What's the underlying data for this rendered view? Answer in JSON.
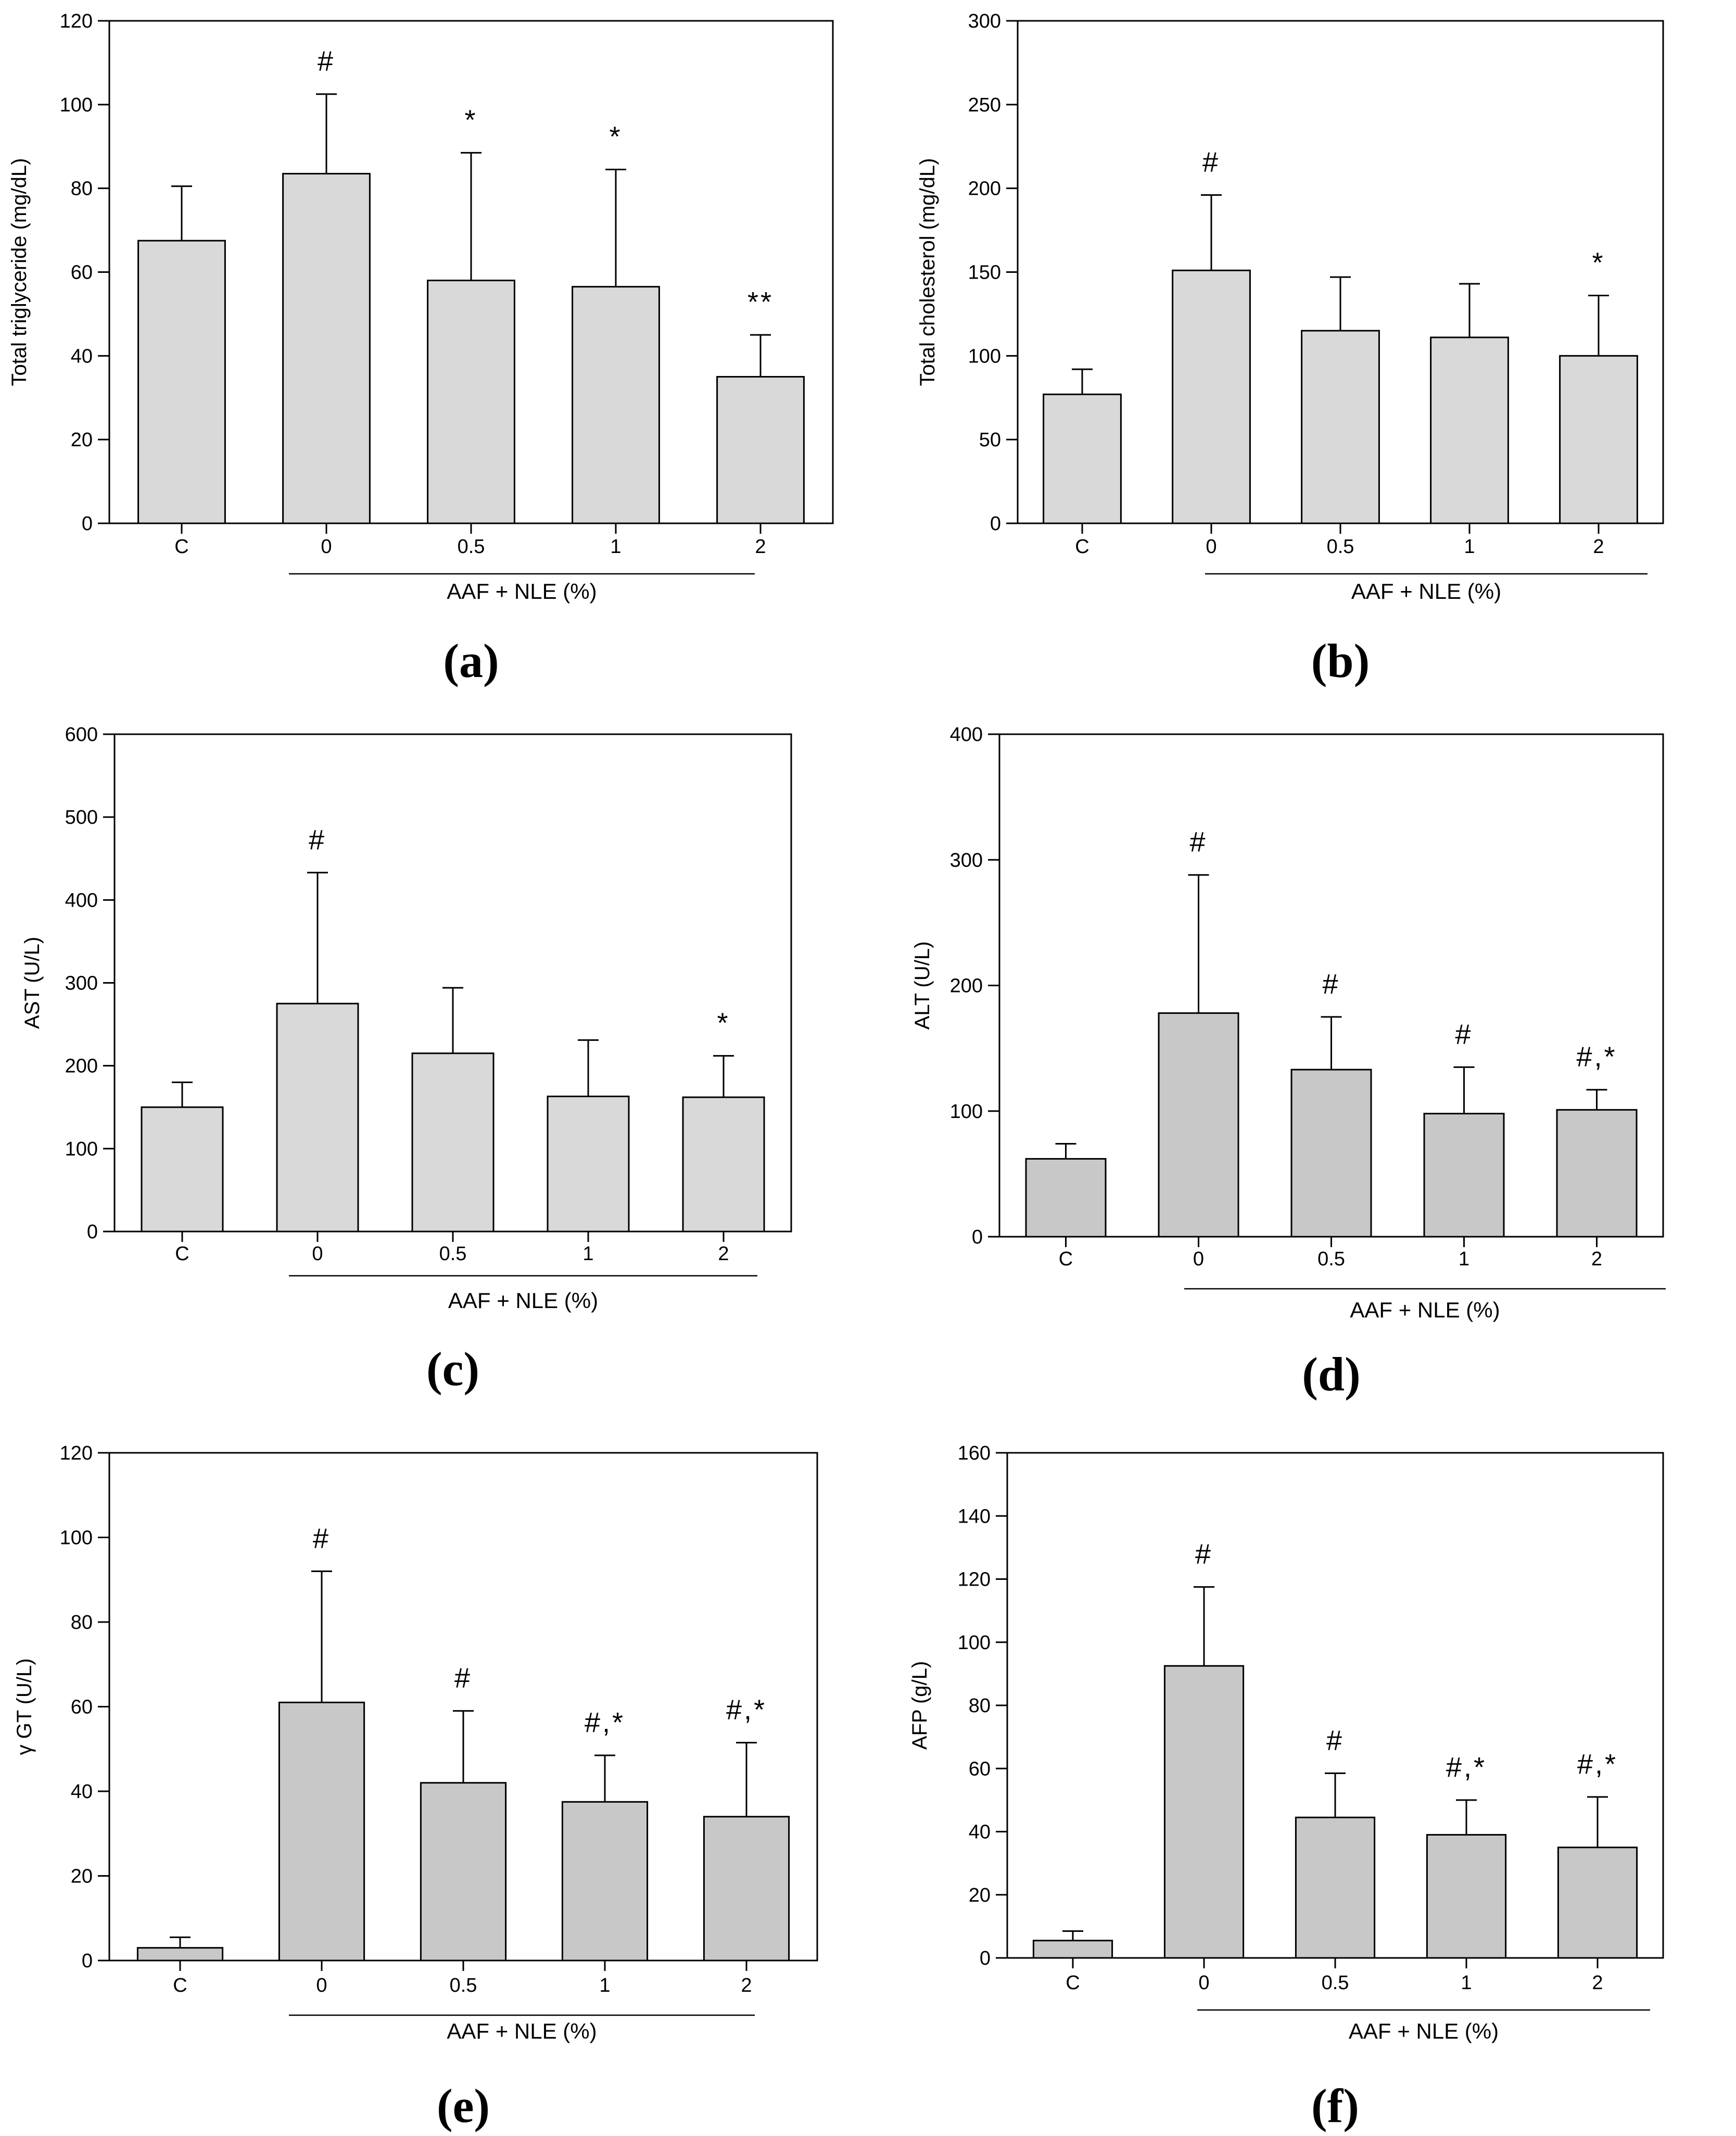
{
  "figure": {
    "group_label": "AAF + NLE (%)"
  },
  "chart_data": [
    {
      "type": "bar",
      "panel_label": "(a)",
      "ylabel": "Total triglyceride (mg/dL)",
      "xlabel": "AAF + NLE (%)",
      "categories": [
        "C",
        "0",
        "0.5",
        "1",
        "2"
      ],
      "values": [
        67.5,
        83.5,
        58.0,
        56.5,
        35.0
      ],
      "errors": [
        13.0,
        19.0,
        30.5,
        28.0,
        10.0
      ],
      "significance": [
        "",
        "#",
        "*",
        "*",
        "**"
      ],
      "ylim": [
        0,
        120
      ],
      "yticks": [
        0,
        20,
        40,
        60,
        80,
        100,
        120
      ],
      "bar_color": "#d9d9d9"
    },
    {
      "type": "bar",
      "panel_label": "(b)",
      "ylabel": "Total cholesterol (mg/dL)",
      "xlabel": "AAF + NLE (%)",
      "categories": [
        "C",
        "0",
        "0.5",
        "1",
        "2"
      ],
      "values": [
        77,
        151,
        115,
        111,
        100
      ],
      "errors": [
        15,
        45,
        32,
        32,
        36
      ],
      "significance": [
        "",
        "#",
        "",
        "",
        "*"
      ],
      "ylim": [
        0,
        300
      ],
      "yticks": [
        0,
        50,
        100,
        150,
        200,
        250,
        300
      ],
      "bar_color": "#d9d9d9"
    },
    {
      "type": "bar",
      "panel_label": "(c)",
      "ylabel": "AST (U/L)",
      "xlabel": "AAF + NLE (%)",
      "categories": [
        "C",
        "0",
        "0.5",
        "1",
        "2"
      ],
      "values": [
        150,
        275,
        215,
        163,
        162
      ],
      "errors": [
        30,
        158,
        79,
        68,
        50
      ],
      "significance": [
        "",
        "#",
        "",
        "",
        "*"
      ],
      "ylim": [
        0,
        600
      ],
      "yticks": [
        0,
        100,
        200,
        300,
        400,
        500,
        600
      ],
      "bar_color": "#d9d9d9"
    },
    {
      "type": "bar",
      "panel_label": "(d)",
      "ylabel": "ALT (U/L)",
      "xlabel": "AAF + NLE (%)",
      "categories": [
        "C",
        "0",
        "0.5",
        "1",
        "2"
      ],
      "values": [
        62,
        178,
        133,
        98,
        101
      ],
      "errors": [
        12,
        110,
        42,
        37,
        16
      ],
      "significance": [
        "",
        "#",
        "#",
        "#",
        "#,*"
      ],
      "ylim": [
        0,
        400
      ],
      "yticks": [
        0,
        100,
        200,
        300,
        400
      ],
      "bar_color": "#c8c8c8"
    },
    {
      "type": "bar",
      "panel_label": "(e)",
      "ylabel": "γ GT (U/L)",
      "xlabel": "AAF + NLE (%)",
      "categories": [
        "C",
        "0",
        "0.5",
        "1",
        "2"
      ],
      "values": [
        3,
        61,
        42,
        37.5,
        34
      ],
      "errors": [
        2.5,
        31,
        17,
        11,
        17.5
      ],
      "significance": [
        "",
        "#",
        "#",
        "#,*",
        "#,*"
      ],
      "ylim": [
        0,
        120
      ],
      "yticks": [
        0,
        20,
        40,
        60,
        80,
        100,
        120
      ],
      "bar_color": "#c8c8c8"
    },
    {
      "type": "bar",
      "panel_label": "(f)",
      "ylabel": "AFP (g/L)",
      "xlabel": "AAF + NLE (%)",
      "categories": [
        "C",
        "0",
        "0.5",
        "1",
        "2"
      ],
      "values": [
        5.5,
        92.5,
        44.5,
        39,
        35
      ],
      "errors": [
        3,
        25,
        14,
        11,
        16
      ],
      "significance": [
        "",
        "#",
        "#",
        "#,*",
        "#,*"
      ],
      "ylim": [
        0,
        160
      ],
      "yticks": [
        0,
        20,
        40,
        60,
        80,
        100,
        120,
        140,
        160
      ],
      "bar_color": "#c8c8c8"
    }
  ]
}
